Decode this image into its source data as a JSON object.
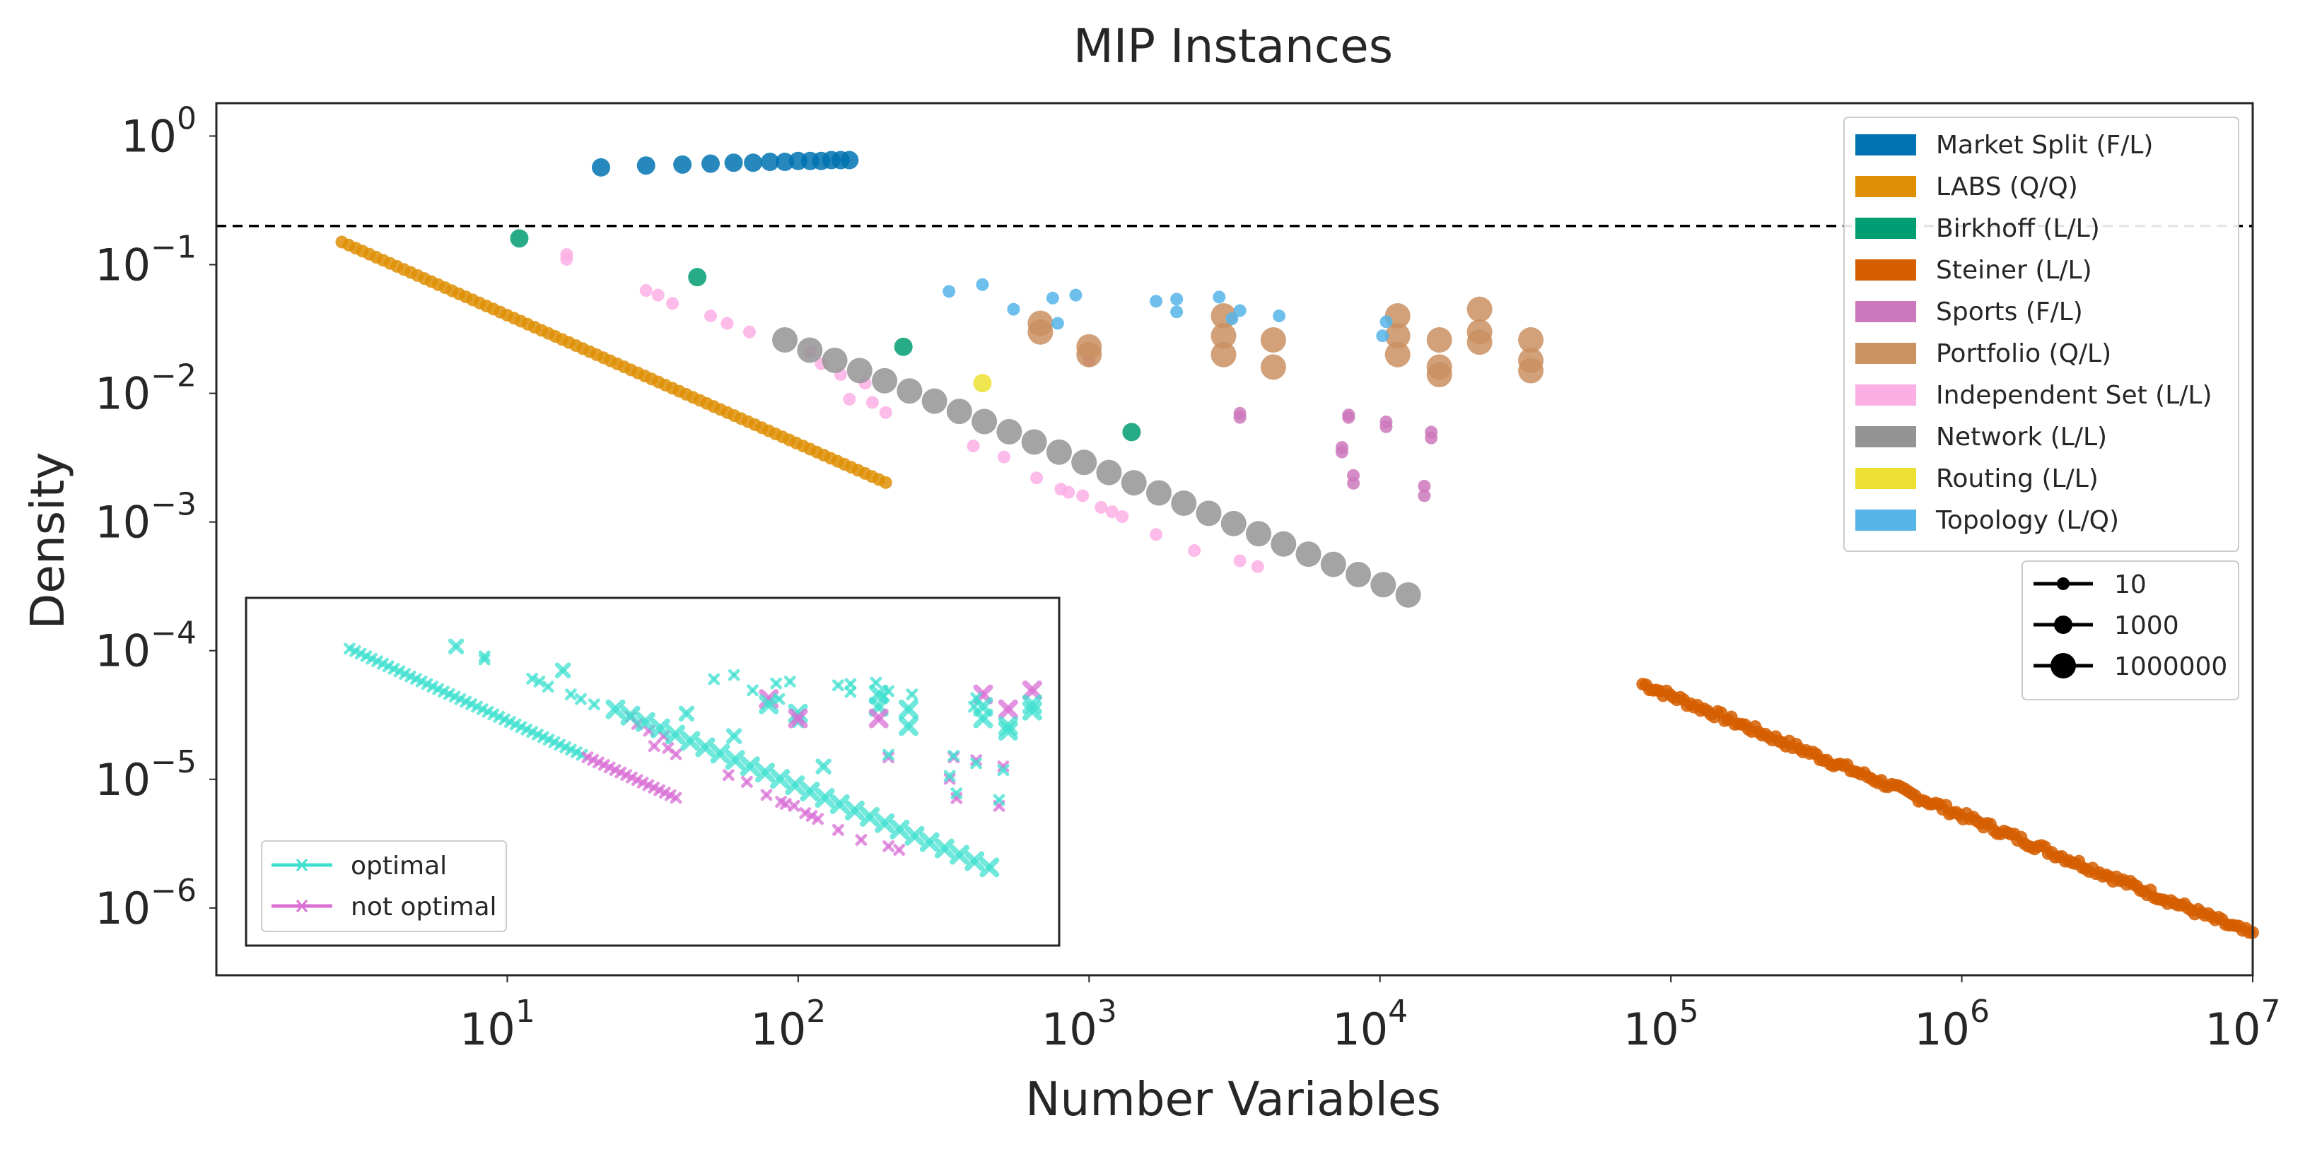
{
  "chart_data": {
    "type": "scatter",
    "title": "MIP Instances",
    "xlabel": "Number Variables",
    "ylabel": "Density",
    "xscale": "log",
    "yscale": "log",
    "xlim": [
      1,
      10000000
    ],
    "ylim": [
      3e-07,
      1.8
    ],
    "xticks": [
      {
        "value": 10,
        "base": "10",
        "exp": "1"
      },
      {
        "value": 100,
        "base": "10",
        "exp": "2"
      },
      {
        "value": 1000,
        "base": "10",
        "exp": "3"
      },
      {
        "value": 10000,
        "base": "10",
        "exp": "4"
      },
      {
        "value": 100000,
        "base": "10",
        "exp": "5"
      },
      {
        "value": 1000000,
        "base": "10",
        "exp": "6"
      },
      {
        "value": 10000000,
        "base": "10",
        "exp": "7"
      }
    ],
    "yticks": [
      {
        "value": 1,
        "base": "10",
        "exp": "0"
      },
      {
        "value": 0.1,
        "base": "10",
        "exp": "−1"
      },
      {
        "value": 0.01,
        "base": "10",
        "exp": "−2"
      },
      {
        "value": 0.001,
        "base": "10",
        "exp": "−3"
      },
      {
        "value": 0.0001,
        "base": "10",
        "exp": "−4"
      },
      {
        "value": 1e-05,
        "base": "10",
        "exp": "−5"
      },
      {
        "value": 1e-06,
        "base": "10",
        "exp": "−6"
      }
    ],
    "threshold_line": {
      "y": 0.2,
      "style": "dashed",
      "color": "#000000"
    },
    "grid": false,
    "legend_position": "top-right",
    "series": [
      {
        "name": "Market Split  (F/L)",
        "color": "#0173b2",
        "points": [
          [
            21,
            0.57,
            2
          ],
          [
            30,
            0.59,
            2
          ],
          [
            40,
            0.6,
            2
          ],
          [
            50,
            0.61,
            2
          ],
          [
            60,
            0.62,
            2
          ],
          [
            70,
            0.62,
            2
          ],
          [
            80,
            0.63,
            2
          ],
          [
            90,
            0.63,
            2
          ],
          [
            100,
            0.64,
            2
          ],
          [
            110,
            0.64,
            2
          ],
          [
            120,
            0.64,
            2
          ],
          [
            130,
            0.65,
            2
          ],
          [
            140,
            0.65,
            2
          ],
          [
            150,
            0.65,
            2
          ]
        ]
      },
      {
        "name": "LABS (Q/Q)",
        "color": "#de8f05",
        "generators": [
          {
            "from": 2.7,
            "to": 200,
            "start_density": 0.15,
            "count": 80,
            "slope": -1,
            "size": 1
          }
        ]
      },
      {
        "name": "Birkhoff (L/L)",
        "color": "#029e73",
        "points": [
          [
            11,
            0.16,
            2
          ],
          [
            45,
            0.08,
            2
          ],
          [
            230,
            0.023,
            2
          ],
          [
            1400,
            0.005,
            2
          ]
        ]
      },
      {
        "name": "Steiner  (L/L)",
        "color": "#d55e00",
        "generators": [
          {
            "from": 80000,
            "to": 10000000,
            "start_density": 5.5e-05,
            "count": 180,
            "slope": -0.93,
            "size": 1.1,
            "jitter": 0.06
          }
        ]
      },
      {
        "name": "Sports (F/L)",
        "color": "#cc78bc",
        "points": [
          [
            1000,
            0.02,
            1
          ],
          [
            1000,
            0.018,
            1
          ],
          [
            3300,
            0.0065,
            1
          ],
          [
            3300,
            0.007,
            1
          ],
          [
            7800,
            0.0065,
            1
          ],
          [
            7800,
            0.0068,
            1
          ],
          [
            7400,
            0.0035,
            1
          ],
          [
            7400,
            0.0038,
            1
          ],
          [
            10500,
            0.006,
            1
          ],
          [
            10500,
            0.0055,
            1
          ],
          [
            8100,
            0.002,
            1
          ],
          [
            8100,
            0.0023,
            1
          ],
          [
            15000,
            0.005,
            1
          ],
          [
            15000,
            0.0045,
            1
          ],
          [
            14200,
            0.0016,
            1
          ],
          [
            14200,
            0.0019,
            1
          ]
        ]
      },
      {
        "name": "Portfolio  (Q/L)",
        "color": "#ca9161",
        "points": [
          [
            680,
            0.035,
            3
          ],
          [
            680,
            0.03,
            3
          ],
          [
            1000,
            0.023,
            3
          ],
          [
            1000,
            0.02,
            3
          ],
          [
            2900,
            0.04,
            3
          ],
          [
            2900,
            0.028,
            3
          ],
          [
            2900,
            0.02,
            3
          ],
          [
            4300,
            0.026,
            3
          ],
          [
            4300,
            0.016,
            3
          ],
          [
            11500,
            0.04,
            3
          ],
          [
            11500,
            0.028,
            3
          ],
          [
            11500,
            0.02,
            3
          ],
          [
            16000,
            0.026,
            3
          ],
          [
            16000,
            0.016,
            3
          ],
          [
            16000,
            0.014,
            3
          ],
          [
            22000,
            0.045,
            3
          ],
          [
            22000,
            0.03,
            3
          ],
          [
            22000,
            0.025,
            3
          ],
          [
            33000,
            0.026,
            3
          ],
          [
            33000,
            0.018,
            3
          ],
          [
            33000,
            0.015,
            3
          ]
        ]
      },
      {
        "name": "Independent Set  (L/L)",
        "color": "#fbafe4",
        "points": [
          [
            16,
            0.12,
            1
          ],
          [
            16,
            0.11,
            1
          ],
          [
            30,
            0.063,
            1
          ],
          [
            33,
            0.058,
            1
          ],
          [
            37,
            0.05,
            1
          ],
          [
            50,
            0.04,
            1
          ],
          [
            57,
            0.035,
            1
          ],
          [
            68,
            0.03,
            1
          ],
          [
            110,
            0.021,
            1
          ],
          [
            120,
            0.017,
            1
          ],
          [
            140,
            0.014,
            1
          ],
          [
            170,
            0.012,
            1
          ],
          [
            150,
            0.009,
            1
          ],
          [
            180,
            0.0085,
            1
          ],
          [
            200,
            0.0071,
            1
          ],
          [
            400,
            0.0039,
            1
          ],
          [
            510,
            0.0032,
            1
          ],
          [
            660,
            0.0022,
            1
          ],
          [
            800,
            0.0018,
            1
          ],
          [
            850,
            0.0017,
            1
          ],
          [
            950,
            0.0016,
            1
          ],
          [
            1100,
            0.0013,
            1
          ],
          [
            1200,
            0.0012,
            1
          ],
          [
            1300,
            0.0011,
            1
          ],
          [
            1700,
            0.0008,
            1
          ],
          [
            2300,
            0.0006,
            1
          ],
          [
            3300,
            0.0005,
            1
          ],
          [
            3800,
            0.00045,
            1
          ]
        ]
      },
      {
        "name": "Network (L/L)",
        "color": "#949494",
        "generators": [
          {
            "from": 90,
            "to": 12500,
            "start_density": 0.026,
            "count": 26,
            "slope": -0.925,
            "size": 3
          }
        ]
      },
      {
        "name": "Routing  (L/L)",
        "color": "#ece133",
        "points": [
          [
            430,
            0.012,
            2
          ]
        ]
      },
      {
        "name": "Topology (L/Q)",
        "color": "#56b4e9",
        "points": [
          [
            330,
            0.062,
            1
          ],
          [
            430,
            0.07,
            1
          ],
          [
            550,
            0.045,
            1
          ],
          [
            750,
            0.055,
            1
          ],
          [
            900,
            0.058,
            1
          ],
          [
            1700,
            0.052,
            1
          ],
          [
            2000,
            0.054,
            1
          ],
          [
            2000,
            0.043,
            1
          ],
          [
            2800,
            0.056,
            1
          ],
          [
            3300,
            0.044,
            1
          ],
          [
            3100,
            0.038,
            1
          ],
          [
            4500,
            0.04,
            1
          ],
          [
            10500,
            0.036,
            1
          ],
          [
            10200,
            0.028,
            1
          ],
          [
            780,
            0.035,
            1
          ]
        ]
      }
    ],
    "legend_sizes": [
      {
        "label": "10",
        "size": 1
      },
      {
        "label": "1000",
        "size": 2
      },
      {
        "label": "1000000",
        "size": 3
      }
    ],
    "inset": {
      "description_note": "",
      "legend": [
        {
          "label": "optimal",
          "color": "#40e0d0"
        },
        {
          "label": "not optimal",
          "color": "#da70d6"
        }
      ],
      "optimal_color": "#40e0d0",
      "not_optimal_color": "#da70d6"
    }
  }
}
